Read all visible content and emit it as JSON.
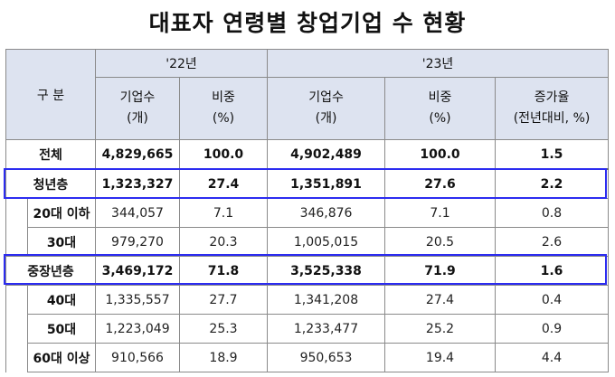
{
  "title": "대표자 연령별 창업기업 수 현황",
  "header": {
    "category": "구  분",
    "year_a": "'22년",
    "year_b": "'23년",
    "count_label": "기업수",
    "count_unit": "(개)",
    "share_label": "비중",
    "share_unit": "(%)",
    "growth_label": "증가율",
    "growth_unit": "(전년대비, %)"
  },
  "rows": [
    {
      "label": "전체",
      "c22": "4,829,665",
      "s22": "100.0",
      "c23": "4,902,489",
      "s23": "100.0",
      "g": "1.5"
    },
    {
      "label": "청년층",
      "c22": "1,323,327",
      "s22": "27.4",
      "c23": "1,351,891",
      "s23": "27.6",
      "g": "2.2"
    },
    {
      "label": "20대 이하",
      "c22": "344,057",
      "s22": "7.1",
      "c23": "346,876",
      "s23": "7.1",
      "g": "0.8"
    },
    {
      "label": "30대",
      "c22": "979,270",
      "s22": "20.3",
      "c23": "1,005,015",
      "s23": "20.5",
      "g": "2.6"
    },
    {
      "label": "중장년층",
      "c22": "3,469,172",
      "s22": "71.8",
      "c23": "3,525,338",
      "s23": "71.9",
      "g": "1.6"
    },
    {
      "label": "40대",
      "c22": "1,335,557",
      "s22": "27.7",
      "c23": "1,341,208",
      "s23": "27.4",
      "g": "0.4"
    },
    {
      "label": "50대",
      "c22": "1,223,049",
      "s22": "25.3",
      "c23": "1,233,477",
      "s23": "25.2",
      "g": "0.9"
    },
    {
      "label": "60대 이상",
      "c22": "910,566",
      "s22": "18.9",
      "c23": "950,653",
      "s23": "19.4",
      "g": "4.4"
    }
  ],
  "highlight_color": "#2c2cf0"
}
